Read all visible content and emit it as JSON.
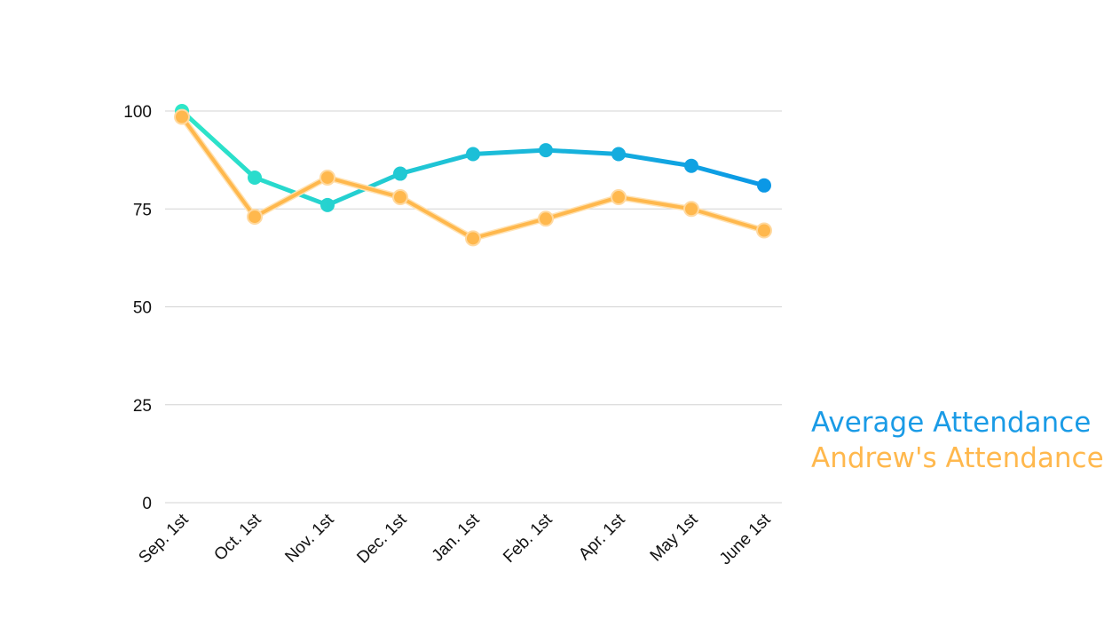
{
  "chart_data": {
    "type": "line",
    "categories": [
      "Sep. 1st",
      "Oct. 1st",
      "Nov. 1st",
      "Dec. 1st",
      "Jan. 1st",
      "Feb. 1st",
      "Apr. 1st",
      "May 1st",
      "June 1st"
    ],
    "series": [
      {
        "name": "Average Attendance",
        "values": [
          100,
          83,
          76,
          84,
          89,
          90,
          89,
          86,
          81
        ],
        "color": "#0ea5e9",
        "gradient": [
          "#2ee6c8",
          "#0b98e6"
        ]
      },
      {
        "name": "Andrew's Attendance",
        "values": [
          98.5,
          73,
          83,
          78,
          67.5,
          72.5,
          78,
          75,
          69.5
        ],
        "color": "#ffb84d"
      }
    ],
    "yticks": [
      0,
      25,
      50,
      75,
      100
    ],
    "ylim": [
      0,
      100
    ],
    "grid": true,
    "legend_position": "right"
  },
  "colors": {
    "grid": "#d3d3d3",
    "tick_text": "#111111",
    "legend_average": "#1a9be6",
    "legend_andrew": "#ffb84d"
  }
}
